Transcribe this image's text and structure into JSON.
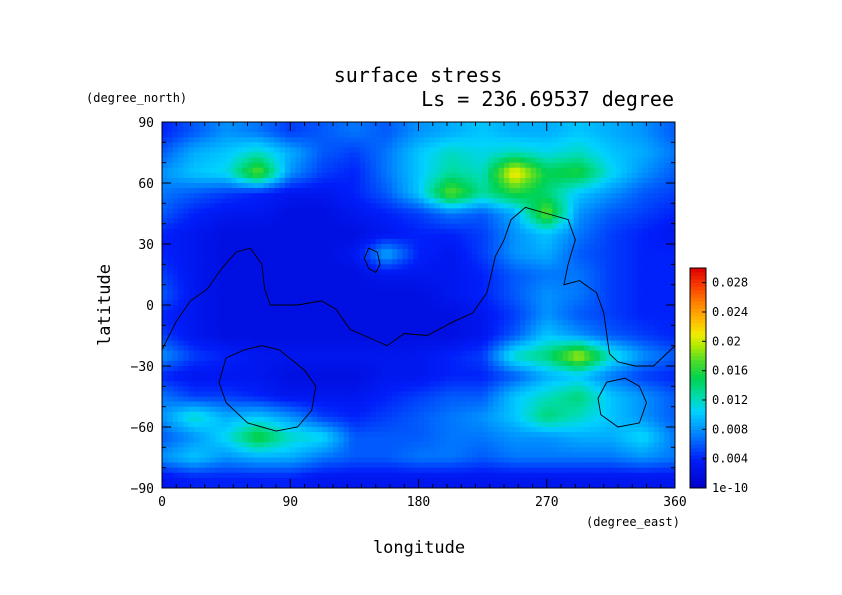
{
  "chart_data": {
    "type": "heatmap",
    "title": "surface stress",
    "subtitle": "Ls = 236.69537 degree",
    "xlabel": "longitude",
    "ylabel": "latitude",
    "xunit": "(degree_east)",
    "yunit": "(degree_north)",
    "xlim": [
      0,
      360
    ],
    "ylim": [
      -90,
      90
    ],
    "xticks": [
      0,
      90,
      180,
      270,
      360
    ],
    "yticks": [
      -90,
      -60,
      -30,
      0,
      30,
      60,
      90
    ],
    "colorbar": {
      "range": [
        0,
        0.03
      ],
      "ticks": [
        {
          "value": 0,
          "label": "1e-10"
        },
        {
          "value": 0.004,
          "label": "0.004"
        },
        {
          "value": 0.008,
          "label": "0.008"
        },
        {
          "value": 0.012,
          "label": "0.012"
        },
        {
          "value": 0.016,
          "label": "0.016"
        },
        {
          "value": 0.02,
          "label": "0.02"
        },
        {
          "value": 0.024,
          "label": "0.024"
        },
        {
          "value": 0.028,
          "label": "0.028"
        }
      ]
    },
    "grid": {
      "lons": [
        0,
        22.5,
        45,
        67.5,
        90,
        112.5,
        135,
        157.5,
        180,
        202.5,
        225,
        247.5,
        270,
        292.5,
        315,
        337.5,
        360
      ],
      "lats": [
        85,
        75,
        65,
        55,
        45,
        35,
        25,
        15,
        5,
        -5,
        -15,
        -25,
        -35,
        -45,
        -55,
        -65,
        -75,
        -85
      ],
      "values": [
        [
          0.004,
          0.006,
          0.008,
          0.007,
          0.005,
          0.006,
          0.007,
          0.006,
          0.008,
          0.009,
          0.01,
          0.009,
          0.009,
          0.01,
          0.009,
          0.008,
          0.006
        ],
        [
          0.006,
          0.009,
          0.01,
          0.012,
          0.009,
          0.006,
          0.005,
          0.007,
          0.01,
          0.012,
          0.011,
          0.012,
          0.011,
          0.012,
          0.01,
          0.009,
          0.007
        ],
        [
          0.008,
          0.01,
          0.011,
          0.018,
          0.008,
          0.005,
          0.004,
          0.007,
          0.01,
          0.013,
          0.012,
          0.022,
          0.015,
          0.016,
          0.011,
          0.008,
          0.006
        ],
        [
          0.007,
          0.006,
          0.005,
          0.004,
          0.003,
          0.003,
          0.004,
          0.006,
          0.01,
          0.018,
          0.013,
          0.016,
          0.014,
          0.01,
          0.008,
          0.006,
          0.005
        ],
        [
          0.006,
          0.004,
          0.003,
          0.003,
          0.002,
          0.002,
          0.003,
          0.004,
          0.005,
          0.007,
          0.006,
          0.009,
          0.018,
          0.008,
          0.006,
          0.005,
          0.004
        ],
        [
          0.004,
          0.003,
          0.002,
          0.002,
          0.002,
          0.002,
          0.002,
          0.003,
          0.004,
          0.004,
          0.005,
          0.008,
          0.01,
          0.007,
          0.005,
          0.004,
          0.003
        ],
        [
          0.004,
          0.003,
          0.002,
          0.002,
          0.002,
          0.002,
          0.003,
          0.009,
          0.004,
          0.003,
          0.005,
          0.008,
          0.009,
          0.006,
          0.005,
          0.004,
          0.004
        ],
        [
          0.005,
          0.003,
          0.002,
          0.002,
          0.002,
          0.002,
          0.002,
          0.003,
          0.003,
          0.003,
          0.004,
          0.006,
          0.007,
          0.007,
          0.005,
          0.004,
          0.004
        ],
        [
          0.006,
          0.003,
          0.002,
          0.002,
          0.002,
          0.002,
          0.002,
          0.002,
          0.002,
          0.003,
          0.004,
          0.006,
          0.008,
          0.007,
          0.005,
          0.004,
          0.004
        ],
        [
          0.004,
          0.003,
          0.002,
          0.002,
          0.002,
          0.002,
          0.002,
          0.002,
          0.002,
          0.002,
          0.003,
          0.005,
          0.008,
          0.006,
          0.005,
          0.004,
          0.004
        ],
        [
          0.005,
          0.003,
          0.002,
          0.002,
          0.002,
          0.002,
          0.002,
          0.002,
          0.002,
          0.002,
          0.003,
          0.006,
          0.01,
          0.008,
          0.006,
          0.005,
          0.004
        ],
        [
          0.008,
          0.005,
          0.004,
          0.003,
          0.003,
          0.003,
          0.003,
          0.003,
          0.003,
          0.004,
          0.005,
          0.012,
          0.014,
          0.02,
          0.012,
          0.008,
          0.006
        ],
        [
          0.004,
          0.003,
          0.003,
          0.003,
          0.002,
          0.002,
          0.002,
          0.003,
          0.003,
          0.004,
          0.004,
          0.006,
          0.009,
          0.01,
          0.007,
          0.005,
          0.004
        ],
        [
          0.007,
          0.005,
          0.005,
          0.004,
          0.003,
          0.003,
          0.003,
          0.004,
          0.005,
          0.006,
          0.006,
          0.01,
          0.012,
          0.014,
          0.01,
          0.008,
          0.006
        ],
        [
          0.008,
          0.012,
          0.009,
          0.01,
          0.008,
          0.005,
          0.004,
          0.005,
          0.006,
          0.007,
          0.008,
          0.01,
          0.014,
          0.012,
          0.01,
          0.008,
          0.006
        ],
        [
          0.006,
          0.008,
          0.011,
          0.016,
          0.012,
          0.011,
          0.006,
          0.006,
          0.006,
          0.007,
          0.007,
          0.008,
          0.008,
          0.009,
          0.009,
          0.011,
          0.007
        ],
        [
          0.008,
          0.01,
          0.008,
          0.009,
          0.009,
          0.007,
          0.006,
          0.006,
          0.007,
          0.007,
          0.006,
          0.007,
          0.007,
          0.007,
          0.007,
          0.008,
          0.007
        ],
        [
          0.003,
          0.004,
          0.004,
          0.004,
          0.004,
          0.003,
          0.003,
          0.003,
          0.003,
          0.003,
          0.003,
          0.003,
          0.003,
          0.003,
          0.003,
          0.003,
          0.003
        ]
      ]
    },
    "contours": [
      [
        [
          0,
          -22
        ],
        [
          10,
          -8
        ],
        [
          20,
          2
        ],
        [
          32,
          8
        ],
        [
          42,
          18
        ],
        [
          52,
          26
        ],
        [
          62,
          28
        ],
        [
          70,
          20
        ],
        [
          72,
          8
        ],
        [
          76,
          0
        ],
        [
          95,
          0
        ],
        [
          112,
          2
        ],
        [
          122,
          -2
        ],
        [
          132,
          -12
        ],
        [
          145,
          -16
        ],
        [
          158,
          -20
        ],
        [
          170,
          -14
        ],
        [
          186,
          -15
        ],
        [
          205,
          -8
        ],
        [
          218,
          -4
        ],
        [
          228,
          6
        ],
        [
          230,
          12
        ],
        [
          234,
          24
        ],
        [
          240,
          32
        ],
        [
          245,
          42
        ],
        [
          255,
          48
        ],
        [
          265,
          46
        ],
        [
          275,
          44
        ],
        [
          285,
          42
        ],
        [
          290,
          32
        ],
        [
          285,
          20
        ],
        [
          282,
          10
        ],
        [
          293,
          12
        ],
        [
          305,
          6
        ],
        [
          310,
          -4
        ],
        [
          312,
          -14
        ],
        [
          314,
          -24
        ],
        [
          320,
          -28
        ],
        [
          332,
          -30
        ],
        [
          345,
          -30
        ],
        [
          360,
          -20
        ]
      ],
      [
        [
          70,
          -20
        ],
        [
          82,
          -22
        ],
        [
          100,
          -32
        ],
        [
          108,
          -40
        ],
        [
          105,
          -52
        ],
        [
          95,
          -60
        ],
        [
          80,
          -62
        ],
        [
          60,
          -58
        ],
        [
          45,
          -48
        ],
        [
          40,
          -38
        ],
        [
          45,
          -26
        ],
        [
          58,
          -22
        ],
        [
          70,
          -20
        ]
      ],
      [
        [
          145,
          28
        ],
        [
          151,
          26
        ],
        [
          153,
          20
        ],
        [
          150,
          16
        ],
        [
          145,
          18
        ],
        [
          142,
          23
        ],
        [
          145,
          28
        ]
      ],
      [
        [
          325,
          -36
        ],
        [
          335,
          -40
        ],
        [
          340,
          -48
        ],
        [
          335,
          -58
        ],
        [
          320,
          -60
        ],
        [
          308,
          -54
        ],
        [
          306,
          -46
        ],
        [
          312,
          -38
        ],
        [
          325,
          -36
        ]
      ]
    ]
  }
}
